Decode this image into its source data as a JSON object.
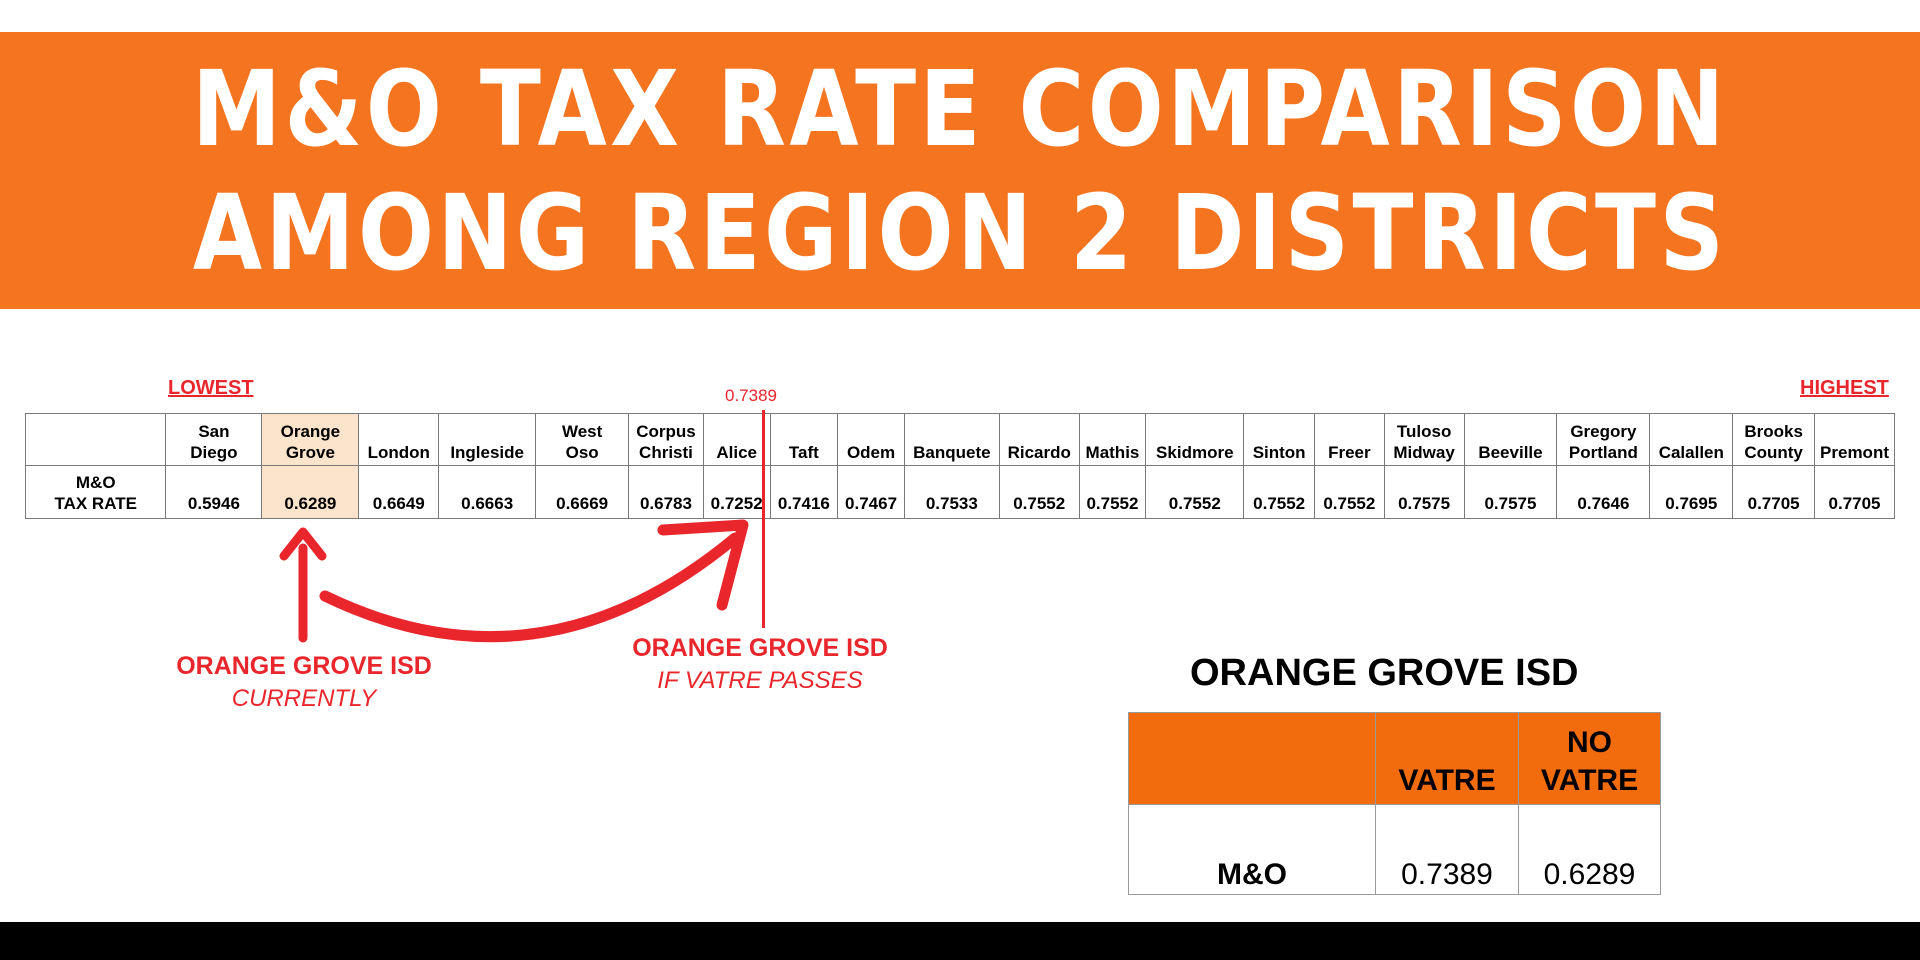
{
  "banner": {
    "line1": "M&O TAX RATE COMPARISON",
    "line2": "AMONG REGION 2 DISTRICTS"
  },
  "labels": {
    "lowest": "LOWEST",
    "highest": "HIGHEST",
    "marker_value": "0.7389"
  },
  "table": {
    "row_label": [
      "M&O",
      "TAX RATE"
    ],
    "districts": [
      {
        "name": [
          "San",
          "Diego"
        ],
        "rate": "0.5946"
      },
      {
        "name": [
          "Orange",
          "Grove"
        ],
        "rate": "0.6289",
        "highlight": true
      },
      {
        "name": [
          "",
          "London"
        ],
        "rate": "0.6649"
      },
      {
        "name": [
          "",
          "Ingleside"
        ],
        "rate": "0.6663"
      },
      {
        "name": [
          "West",
          "Oso"
        ],
        "rate": "0.6669"
      },
      {
        "name": [
          "Corpus",
          "Christi"
        ],
        "rate": "0.6783"
      },
      {
        "name": [
          "",
          "Alice"
        ],
        "rate": "0.7252"
      },
      {
        "name": [
          "",
          "Taft"
        ],
        "rate": "0.7416"
      },
      {
        "name": [
          "",
          "Odem"
        ],
        "rate": "0.7467"
      },
      {
        "name": [
          "",
          "Banquete"
        ],
        "rate": "0.7533"
      },
      {
        "name": [
          "",
          "Ricardo"
        ],
        "rate": "0.7552"
      },
      {
        "name": [
          "",
          "Mathis"
        ],
        "rate": "0.7552"
      },
      {
        "name": [
          "",
          "Skidmore"
        ],
        "rate": "0.7552"
      },
      {
        "name": [
          "",
          "Sinton"
        ],
        "rate": "0.7552"
      },
      {
        "name": [
          "",
          "Freer"
        ],
        "rate": "0.7552"
      },
      {
        "name": [
          "Tuloso",
          "Midway"
        ],
        "rate": "0.7575"
      },
      {
        "name": [
          "",
          "Beeville"
        ],
        "rate": "0.7575"
      },
      {
        "name": [
          "Gregory",
          "Portland"
        ],
        "rate": "0.7646"
      },
      {
        "name": [
          "",
          "Calallen"
        ],
        "rate": "0.7695"
      },
      {
        "name": [
          "Brooks",
          "County"
        ],
        "rate": "0.7705"
      },
      {
        "name": [
          "",
          "Premont"
        ],
        "rate": "0.7705"
      }
    ]
  },
  "captions": {
    "current": {
      "title": "ORANGE GROVE ISD",
      "sub": "CURRENTLY"
    },
    "if_passes": {
      "title": "ORANGE GROVE ISD",
      "sub": "IF VATRE PASSES"
    }
  },
  "comparison": {
    "heading": "ORANGE GROVE ISD",
    "col_headers": [
      [
        "",
        "VATRE"
      ],
      [
        "NO",
        "VATRE"
      ]
    ],
    "row_label": "M&O",
    "values": [
      "0.7389",
      "0.6289"
    ]
  },
  "colors": {
    "banner": "#f47420",
    "accent_red": "#e8262c",
    "highlight": "#fbe3cc",
    "table_header": "#f26b0d",
    "footer": "#000000"
  }
}
